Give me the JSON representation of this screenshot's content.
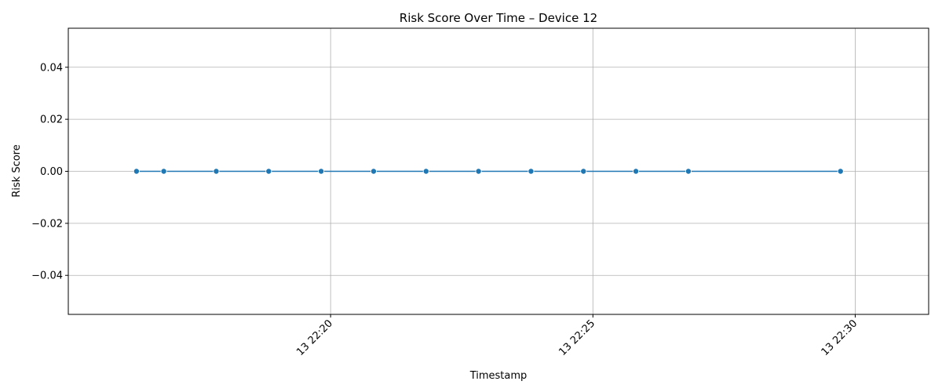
{
  "chart_data": {
    "type": "line",
    "title": "Risk Score Over Time – Device 12",
    "xlabel": "Timestamp",
    "ylabel": "Risk Score",
    "x_ticks": [
      "13 22:20",
      "13 22:25",
      "13 22:30"
    ],
    "x_tick_minutes": [
      20,
      25,
      30
    ],
    "y_ticks": [
      "0.04",
      "0.02",
      "0.00",
      "−0.02",
      "−0.04"
    ],
    "y_tick_values": [
      0.04,
      0.02,
      0.0,
      -0.02,
      -0.04
    ],
    "xlim_minutes": [
      15.0,
      31.4
    ],
    "ylim": [
      -0.055,
      0.055
    ],
    "grid": true,
    "marker": "circle",
    "color": "#1f77b4",
    "series": [
      {
        "x_minutes": [
          16.3,
          16.82,
          17.82,
          18.82,
          19.82,
          20.82,
          21.82,
          22.82,
          23.82,
          24.82,
          25.82,
          26.82,
          29.72
        ],
        "values": [
          0,
          0,
          0,
          0,
          0,
          0,
          0,
          0,
          0,
          0,
          0,
          0,
          0
        ]
      }
    ]
  }
}
